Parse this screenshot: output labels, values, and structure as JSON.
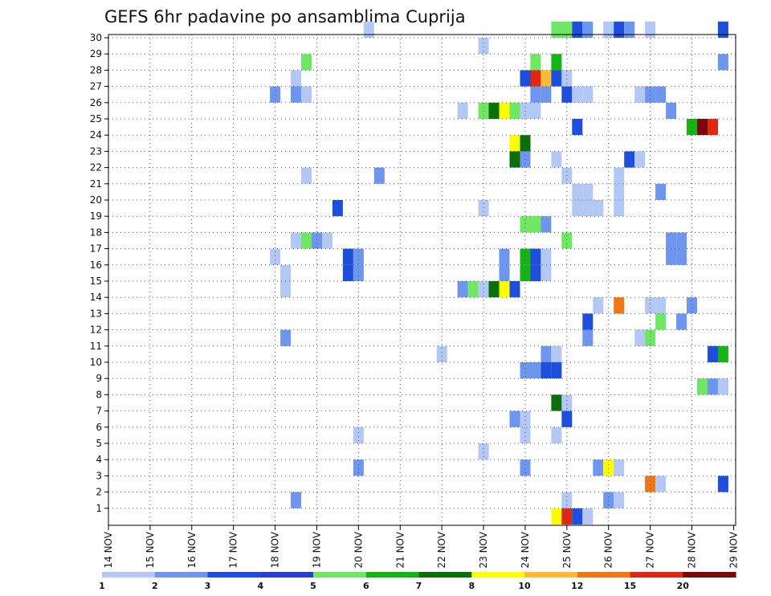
{
  "chart_data": {
    "type": "heatmap",
    "title": "GEFS 6hr padavine po ansamblima Cuprija",
    "xlabel": "",
    "ylabel": "",
    "x_range_days": [
      14,
      29.05
    ],
    "y_range": [
      0,
      30
    ],
    "grid": true,
    "x_tick_labels": [
      "14 NOV",
      "15 NOV",
      "16 NOV",
      "17 NOV",
      "18 NOV",
      "19 NOV",
      "20 NOV",
      "21 NOV",
      "22 NOV",
      "23 NOV",
      "24 NOV",
      "25 NOV",
      "26 NOV",
      "27 NOV",
      "28 NOV",
      "29 NOV"
    ],
    "y_tick_labels": [
      "1",
      "2",
      "3",
      "4",
      "5",
      "6",
      "7",
      "8",
      "9",
      "10",
      "11",
      "12",
      "13",
      "14",
      "15",
      "16",
      "17",
      "18",
      "19",
      "20",
      "21",
      "22",
      "23",
      "24",
      "25",
      "26",
      "27",
      "28",
      "29",
      "30"
    ],
    "colorbar": {
      "labels": [
        "1",
        "2",
        "3",
        "4",
        "5",
        "6",
        "7",
        "8",
        "10",
        "12",
        "15",
        "20"
      ],
      "colors": [
        "#b4c8f5",
        "#6e96ee",
        "#1e4fdc",
        "#2a3fd0",
        "#6ee864",
        "#14b414",
        "#0a6e0a",
        "#ffff00",
        "#ffbb33",
        "#f07814",
        "#dc2814",
        "#780a0a"
      ]
    },
    "cells": [
      {
        "day": 20.25,
        "member": 30,
        "level": 1
      },
      {
        "day": 24.75,
        "member": 30,
        "level": 5
      },
      {
        "day": 25.0,
        "member": 30,
        "level": 5
      },
      {
        "day": 25.25,
        "member": 30,
        "level": 3
      },
      {
        "day": 25.5,
        "member": 30,
        "level": 2
      },
      {
        "day": 26.0,
        "member": 30,
        "level": 1
      },
      {
        "day": 26.25,
        "member": 30,
        "level": 3
      },
      {
        "day": 26.5,
        "member": 30,
        "level": 2
      },
      {
        "day": 27.0,
        "member": 30,
        "level": 1
      },
      {
        "day": 28.75,
        "member": 30,
        "level": 3
      },
      {
        "day": 23.0,
        "member": 29,
        "level": 1
      },
      {
        "day": 18.75,
        "member": 28,
        "level": 5
      },
      {
        "day": 24.25,
        "member": 28,
        "level": 5
      },
      {
        "day": 24.75,
        "member": 28,
        "level": 6
      },
      {
        "day": 28.75,
        "member": 28,
        "level": 2
      },
      {
        "day": 18.5,
        "member": 27,
        "level": 1
      },
      {
        "day": 24.0,
        "member": 27,
        "level": 3
      },
      {
        "day": 24.25,
        "member": 27,
        "level": 11
      },
      {
        "day": 24.5,
        "member": 27,
        "level": 9
      },
      {
        "day": 24.75,
        "member": 27,
        "level": 3
      },
      {
        "day": 25.0,
        "member": 27,
        "level": 1
      },
      {
        "day": 18.0,
        "member": 26,
        "level": 2
      },
      {
        "day": 18.5,
        "member": 26,
        "level": 2
      },
      {
        "day": 18.75,
        "member": 26,
        "level": 1
      },
      {
        "day": 24.25,
        "member": 26,
        "level": 2
      },
      {
        "day": 24.5,
        "member": 26,
        "level": 2
      },
      {
        "day": 25.0,
        "member": 26,
        "level": 3
      },
      {
        "day": 25.25,
        "member": 26,
        "level": 1
      },
      {
        "day": 25.5,
        "member": 26,
        "level": 1
      },
      {
        "day": 26.75,
        "member": 26,
        "level": 1
      },
      {
        "day": 27.0,
        "member": 26,
        "level": 2
      },
      {
        "day": 27.25,
        "member": 26,
        "level": 2
      },
      {
        "day": 22.5,
        "member": 25,
        "level": 1
      },
      {
        "day": 23.0,
        "member": 25,
        "level": 5
      },
      {
        "day": 23.25,
        "member": 25,
        "level": 7
      },
      {
        "day": 23.5,
        "member": 25,
        "level": 8
      },
      {
        "day": 23.75,
        "member": 25,
        "level": 5
      },
      {
        "day": 24.0,
        "member": 25,
        "level": 1
      },
      {
        "day": 24.25,
        "member": 25,
        "level": 1
      },
      {
        "day": 27.5,
        "member": 25,
        "level": 2
      },
      {
        "day": 25.25,
        "member": 24,
        "level": 3
      },
      {
        "day": 28.0,
        "member": 24,
        "level": 6
      },
      {
        "day": 28.25,
        "member": 24,
        "level": 12
      },
      {
        "day": 28.5,
        "member": 24,
        "level": 11
      },
      {
        "day": 23.75,
        "member": 23,
        "level": 8
      },
      {
        "day": 24.0,
        "member": 23,
        "level": 7
      },
      {
        "day": 23.75,
        "member": 22,
        "level": 7
      },
      {
        "day": 24.0,
        "member": 22,
        "level": 2
      },
      {
        "day": 24.75,
        "member": 22,
        "level": 1
      },
      {
        "day": 26.5,
        "member": 22,
        "level": 3
      },
      {
        "day": 26.75,
        "member": 22,
        "level": 1
      },
      {
        "day": 18.75,
        "member": 21,
        "level": 1
      },
      {
        "day": 20.5,
        "member": 21,
        "level": 2
      },
      {
        "day": 25.0,
        "member": 21,
        "level": 1
      },
      {
        "day": 26.25,
        "member": 21,
        "level": 1
      },
      {
        "day": 25.25,
        "member": 20,
        "level": 1
      },
      {
        "day": 25.5,
        "member": 20,
        "level": 1
      },
      {
        "day": 26.25,
        "member": 20,
        "level": 1
      },
      {
        "day": 27.25,
        "member": 20,
        "level": 2
      },
      {
        "day": 25.25,
        "member": 19,
        "level": 1
      },
      {
        "day": 25.5,
        "member": 19,
        "level": 1
      },
      {
        "day": 26.25,
        "member": 19,
        "level": 1
      },
      {
        "day": 19.5,
        "member": 19,
        "level": 3
      },
      {
        "day": 23.0,
        "member": 19,
        "level": 1
      },
      {
        "day": 25.75,
        "member": 19,
        "level": 1
      },
      {
        "day": 24.0,
        "member": 18,
        "level": 5
      },
      {
        "day": 24.25,
        "member": 18,
        "level": 5
      },
      {
        "day": 24.5,
        "member": 18,
        "level": 2
      },
      {
        "day": 18.5,
        "member": 17,
        "level": 1
      },
      {
        "day": 18.75,
        "member": 17,
        "level": 5
      },
      {
        "day": 19.0,
        "member": 17,
        "level": 2
      },
      {
        "day": 19.25,
        "member": 17,
        "level": 1
      },
      {
        "day": 25.0,
        "member": 17,
        "level": 5
      },
      {
        "day": 27.5,
        "member": 17,
        "level": 2
      },
      {
        "day": 27.75,
        "member": 17,
        "level": 2
      },
      {
        "day": 18.0,
        "member": 16,
        "level": 1
      },
      {
        "day": 19.75,
        "member": 16,
        "level": 3
      },
      {
        "day": 20.0,
        "member": 16,
        "level": 2
      },
      {
        "day": 23.5,
        "member": 16,
        "level": 2
      },
      {
        "day": 24.0,
        "member": 16,
        "level": 6
      },
      {
        "day": 24.25,
        "member": 16,
        "level": 3
      },
      {
        "day": 24.5,
        "member": 16,
        "level": 1
      },
      {
        "day": 27.5,
        "member": 16,
        "level": 2
      },
      {
        "day": 27.75,
        "member": 16,
        "level": 2
      },
      {
        "day": 18.25,
        "member": 15,
        "level": 1
      },
      {
        "day": 19.75,
        "member": 15,
        "level": 3
      },
      {
        "day": 20.0,
        "member": 15,
        "level": 2
      },
      {
        "day": 23.5,
        "member": 15,
        "level": 2
      },
      {
        "day": 24.0,
        "member": 15,
        "level": 6
      },
      {
        "day": 24.25,
        "member": 15,
        "level": 3
      },
      {
        "day": 24.5,
        "member": 15,
        "level": 1
      },
      {
        "day": 18.25,
        "member": 14,
        "level": 1
      },
      {
        "day": 22.5,
        "member": 14,
        "level": 2
      },
      {
        "day": 22.75,
        "member": 14,
        "level": 5
      },
      {
        "day": 23.0,
        "member": 14,
        "level": 1
      },
      {
        "day": 23.25,
        "member": 14,
        "level": 7
      },
      {
        "day": 23.5,
        "member": 14,
        "level": 8
      },
      {
        "day": 23.75,
        "member": 14,
        "level": 3
      },
      {
        "day": 25.75,
        "member": 13,
        "level": 1
      },
      {
        "day": 26.25,
        "member": 13,
        "level": 10
      },
      {
        "day": 27.0,
        "member": 13,
        "level": 1
      },
      {
        "day": 27.25,
        "member": 13,
        "level": 1
      },
      {
        "day": 28.0,
        "member": 13,
        "level": 2
      },
      {
        "day": 25.5,
        "member": 12,
        "level": 3
      },
      {
        "day": 27.25,
        "member": 12,
        "level": 5
      },
      {
        "day": 27.75,
        "member": 12,
        "level": 2
      },
      {
        "day": 18.25,
        "member": 11,
        "level": 2
      },
      {
        "day": 25.5,
        "member": 11,
        "level": 2
      },
      {
        "day": 26.75,
        "member": 11,
        "level": 1
      },
      {
        "day": 27.0,
        "member": 11,
        "level": 5
      },
      {
        "day": 22.0,
        "member": 10,
        "level": 1
      },
      {
        "day": 24.5,
        "member": 10,
        "level": 2
      },
      {
        "day": 24.75,
        "member": 10,
        "level": 1
      },
      {
        "day": 28.5,
        "member": 10,
        "level": 3
      },
      {
        "day": 28.75,
        "member": 10,
        "level": 6
      },
      {
        "day": 24.0,
        "member": 9,
        "level": 2
      },
      {
        "day": 24.25,
        "member": 9,
        "level": 2
      },
      {
        "day": 24.5,
        "member": 9,
        "level": 3
      },
      {
        "day": 24.75,
        "member": 9,
        "level": 3
      },
      {
        "day": 28.25,
        "member": 8,
        "level": 5
      },
      {
        "day": 28.5,
        "member": 8,
        "level": 2
      },
      {
        "day": 28.75,
        "member": 8,
        "level": 1
      },
      {
        "day": 24.75,
        "member": 7,
        "level": 7
      },
      {
        "day": 25.0,
        "member": 7,
        "level": 1
      },
      {
        "day": 23.75,
        "member": 6,
        "level": 2
      },
      {
        "day": 24.0,
        "member": 6,
        "level": 1
      },
      {
        "day": 25.0,
        "member": 6,
        "level": 3
      },
      {
        "day": 20.0,
        "member": 5,
        "level": 1
      },
      {
        "day": 24.0,
        "member": 5,
        "level": 1
      },
      {
        "day": 24.75,
        "member": 5,
        "level": 1
      },
      {
        "day": 23.0,
        "member": 4,
        "level": 1
      },
      {
        "day": 20.0,
        "member": 3,
        "level": 2
      },
      {
        "day": 24.0,
        "member": 3,
        "level": 2
      },
      {
        "day": 25.75,
        "member": 3,
        "level": 2
      },
      {
        "day": 26.0,
        "member": 3,
        "level": 8
      },
      {
        "day": 26.25,
        "member": 3,
        "level": 1
      },
      {
        "day": 27.0,
        "member": 2,
        "level": 10
      },
      {
        "day": 27.25,
        "member": 2,
        "level": 1
      },
      {
        "day": 28.75,
        "member": 2,
        "level": 3
      },
      {
        "day": 18.5,
        "member": 1,
        "level": 2
      },
      {
        "day": 25.0,
        "member": 1,
        "level": 1
      },
      {
        "day": 26.0,
        "member": 1,
        "level": 2
      },
      {
        "day": 26.25,
        "member": 1,
        "level": 1
      },
      {
        "day": 24.75,
        "member": 0,
        "level": 8
      },
      {
        "day": 25.0,
        "member": 0,
        "level": 11
      },
      {
        "day": 25.25,
        "member": 0,
        "level": 3
      },
      {
        "day": 25.5,
        "member": 0,
        "level": 1
      }
    ]
  }
}
